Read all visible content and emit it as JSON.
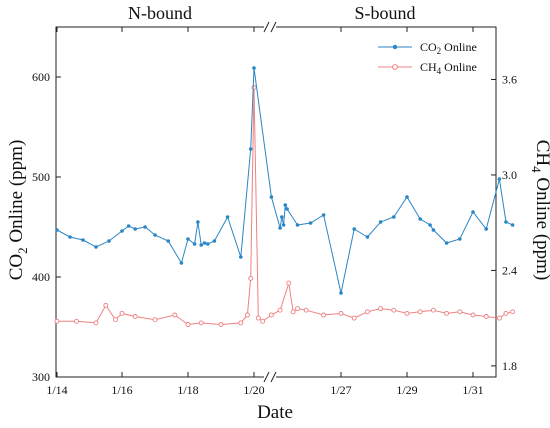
{
  "chart_data": {
    "type": "line",
    "sections": [
      "N-bound",
      "S-bound"
    ],
    "xlabel": "Date",
    "x_ticks": [
      "1/14",
      "1/16",
      "1/18",
      "1/20",
      "1/27",
      "1/29",
      "1/31"
    ],
    "left_axis": {
      "label_main": "CO",
      "label_sub": "2",
      "label_rest": " Online (ppm)",
      "ylim": [
        300,
        650
      ],
      "ticks": [
        "300",
        "400",
        "500",
        "600"
      ]
    },
    "right_axis": {
      "label_main": "CH",
      "label_sub": "4",
      "label_rest": " Online (ppm)",
      "ylim": [
        1.73,
        3.93
      ],
      "ticks": [
        "1.8",
        "2.4",
        "3.0",
        "3.6"
      ]
    },
    "legend": [
      {
        "main": "CO",
        "sub": "2",
        "rest": " Online",
        "color": "#2b86c5",
        "marker": "filled-circle"
      },
      {
        "main": "CH",
        "sub": "4",
        "rest": " Online",
        "color": "#f08080",
        "marker": "open-circle"
      }
    ],
    "series": [
      {
        "name": "CO2 Online",
        "axis": "left",
        "color": "#2b86c5",
        "x_tick_index": [
          0,
          0.2,
          0.4,
          0.6,
          0.8,
          1.0,
          1.1,
          1.2,
          1.35,
          1.5,
          1.7,
          1.9,
          2.0,
          2.1,
          2.15,
          2.2,
          2.25,
          2.3,
          2.4,
          2.6,
          2.8,
          2.95,
          3.0,
          3.2,
          3.3,
          3.32,
          3.34,
          3.36,
          3.38,
          3.5,
          3.65,
          3.8,
          4.0,
          4.2,
          4.4,
          4.6,
          4.8,
          5.0,
          5.2,
          5.35,
          5.4,
          5.6,
          5.8,
          6.0,
          6.2,
          6.4,
          6.5,
          6.6
        ],
        "values": [
          447,
          440,
          437,
          430,
          436,
          446,
          451,
          448,
          450,
          442,
          436,
          414,
          438,
          433,
          455,
          432,
          434,
          433,
          436,
          460,
          420,
          528,
          609,
          480,
          449,
          460,
          452,
          472,
          468,
          452,
          454,
          462,
          384,
          448,
          440,
          455,
          460,
          480,
          458,
          452,
          447,
          434,
          438,
          465,
          448,
          498,
          455,
          452
        ]
      },
      {
        "name": "CH4 Online",
        "axis": "right",
        "color": "#f08080",
        "x_tick_index": [
          0,
          0.3,
          0.6,
          0.75,
          0.9,
          1.0,
          1.2,
          1.5,
          1.8,
          2.0,
          2.2,
          2.5,
          2.8,
          2.9,
          2.95,
          3.0,
          3.05,
          3.1,
          3.2,
          3.3,
          3.4,
          3.45,
          3.5,
          3.6,
          3.8,
          4.0,
          4.2,
          4.4,
          4.6,
          4.8,
          5.0,
          5.2,
          5.4,
          5.6,
          5.8,
          6.0,
          6.2,
          6.4,
          6.5,
          6.6
        ],
        "values": [
          2.08,
          2.08,
          2.07,
          2.18,
          2.09,
          2.13,
          2.11,
          2.09,
          2.12,
          2.06,
          2.07,
          2.06,
          2.07,
          2.12,
          2.35,
          3.55,
          2.1,
          2.08,
          2.12,
          2.15,
          2.32,
          2.14,
          2.16,
          2.15,
          2.12,
          2.13,
          2.1,
          2.14,
          2.16,
          2.15,
          2.13,
          2.14,
          2.15,
          2.13,
          2.14,
          2.12,
          2.11,
          2.1,
          2.13,
          2.14
        ]
      }
    ]
  }
}
